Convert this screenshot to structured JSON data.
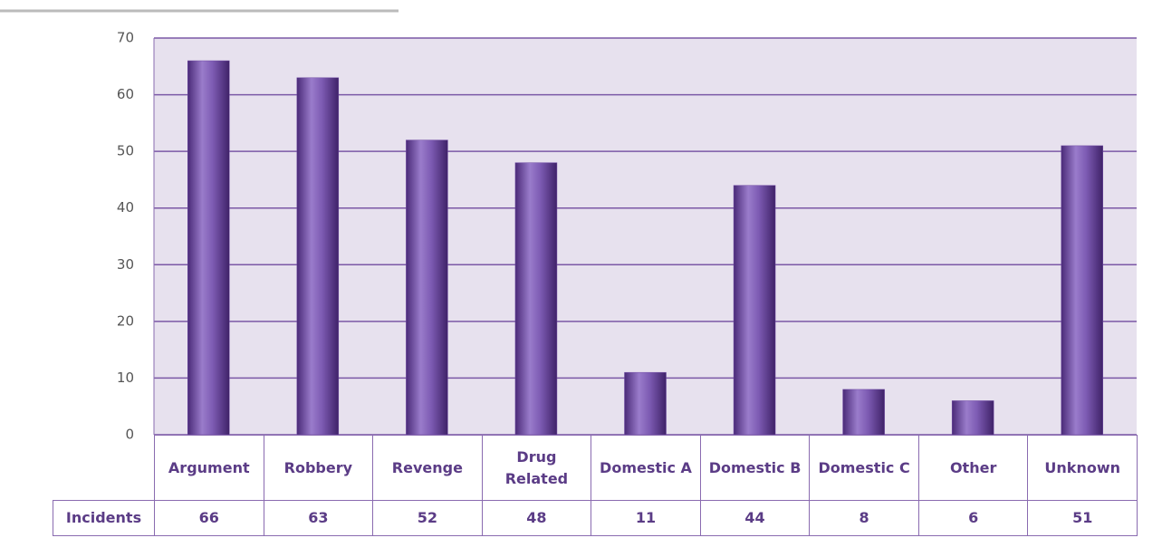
{
  "chart_data": {
    "type": "bar",
    "categories": [
      "Argument",
      "Robbery",
      "Revenge",
      "Drug Related",
      "Domestic A",
      "Domestic B",
      "Domestic C",
      "Other",
      "Unknown"
    ],
    "series": [
      {
        "name": "Incidents",
        "color": "#6f4aa3",
        "values": [
          66,
          63,
          52,
          48,
          11,
          44,
          8,
          6,
          51
        ]
      }
    ],
    "ylim": [
      0,
      70
    ],
    "yticks": [
      0,
      10,
      20,
      30,
      40,
      50,
      60,
      70
    ],
    "grid": true
  }
}
